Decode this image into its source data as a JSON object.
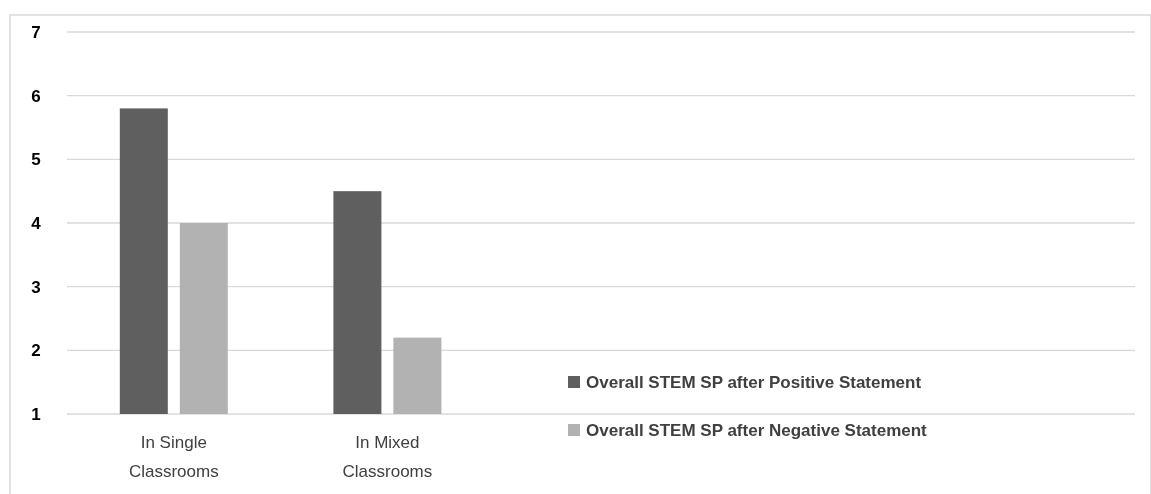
{
  "chart_data": {
    "type": "bar",
    "categories": [
      "In Single Classrooms",
      "In Mixed Classrooms"
    ],
    "series": [
      {
        "name": "Overall STEM SP after Positive Statement",
        "color": "#5f5f5f",
        "values": [
          5.8,
          4.5
        ]
      },
      {
        "name": "Overall STEM SP after Negative Statement",
        "color": "#b2b2b2",
        "values": [
          4.0,
          2.2
        ]
      }
    ],
    "ylim": [
      1,
      7
    ],
    "yticks": [
      1,
      2,
      3,
      4,
      5,
      6,
      7
    ],
    "grid": "y",
    "legend": "right"
  }
}
